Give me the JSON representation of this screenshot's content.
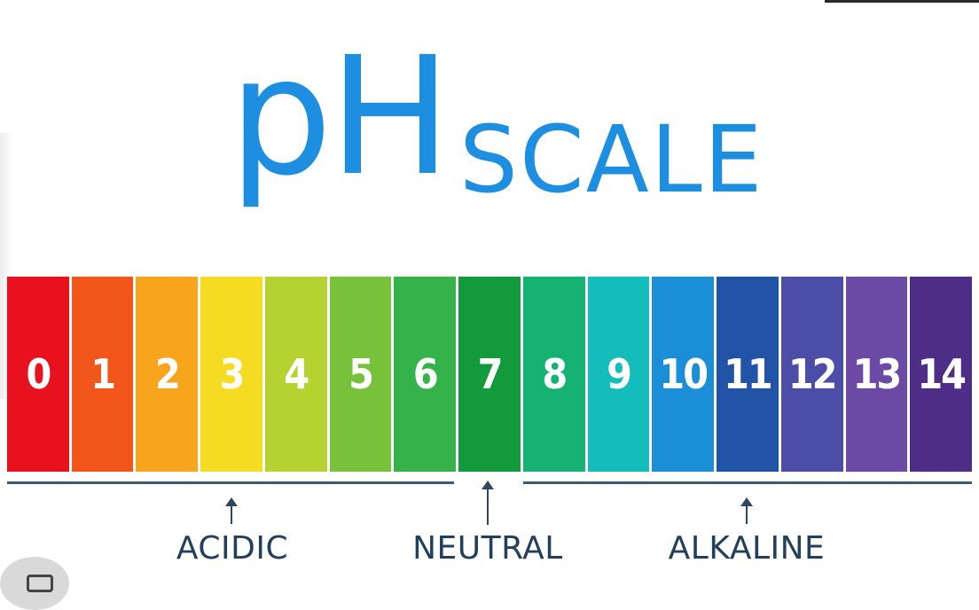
{
  "title": {
    "ph": "pH",
    "scale": "SCALE"
  },
  "scale": {
    "cells": [
      {
        "label": "0",
        "color": "#e8121f"
      },
      {
        "label": "1",
        "color": "#f2561b"
      },
      {
        "label": "2",
        "color": "#f7a51c"
      },
      {
        "label": "3",
        "color": "#f5dc22"
      },
      {
        "label": "4",
        "color": "#b6d230"
      },
      {
        "label": "5",
        "color": "#78c13a"
      },
      {
        "label": "6",
        "color": "#35b34a"
      },
      {
        "label": "7",
        "color": "#139a3c"
      },
      {
        "label": "8",
        "color": "#16b274"
      },
      {
        "label": "9",
        "color": "#14bcbc"
      },
      {
        "label": "10",
        "color": "#1a8ed6"
      },
      {
        "label": "11",
        "color": "#2153a6"
      },
      {
        "label": "12",
        "color": "#4b4da6"
      },
      {
        "label": "13",
        "color": "#6a4aa4"
      },
      {
        "label": "14",
        "color": "#4d2d86"
      }
    ]
  },
  "ranges": {
    "acidic": "ACIDIC",
    "neutral": "NEUTRAL",
    "alkaline": "ALKALINE"
  },
  "colors": {
    "title": "#1e8fe0",
    "labels": "#23405b",
    "rules": "#3d5a73"
  }
}
